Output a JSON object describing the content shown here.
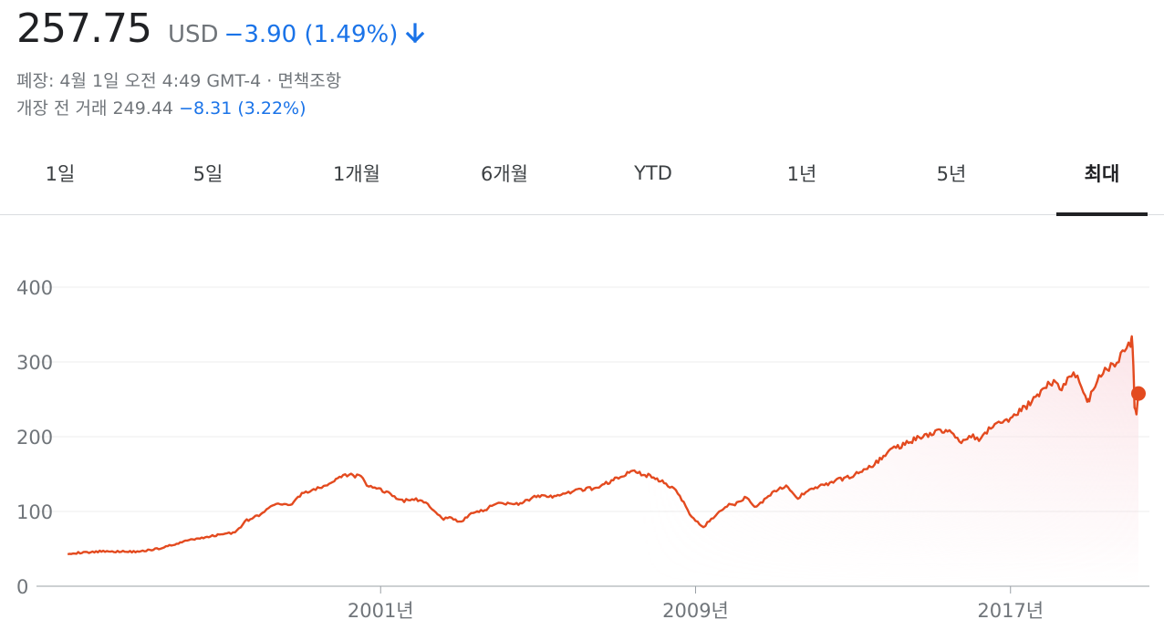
{
  "quote": {
    "price": "257.75",
    "currency": "USD",
    "change": "−3.90 (1.49%)",
    "direction_icon": "arrow-down-icon",
    "status_prefix": "폐장: ",
    "status_time": "4월 1일 오전 4:49 GMT-4",
    "status_separator": "·",
    "disclaimer": "면책조항",
    "premarket_label": "개장 전 거래",
    "premarket_price": "249.44",
    "premarket_change": "−8.31 (3.22%)"
  },
  "colors": {
    "line": "#e34a1f",
    "fill": "#fbe3e7",
    "negative": "#1a73e8",
    "grid": "#ececec"
  },
  "tabs": [
    {
      "label": "1일"
    },
    {
      "label": "5일"
    },
    {
      "label": "1개월"
    },
    {
      "label": "6개월"
    },
    {
      "label": "YTD"
    },
    {
      "label": "1년"
    },
    {
      "label": "5년"
    },
    {
      "label": "최대"
    }
  ],
  "active_tab": "최대",
  "chart_data": {
    "type": "line",
    "title": "",
    "xlabel": "",
    "ylabel": "",
    "ylim": [
      0,
      400
    ],
    "xlim": [
      1993.0,
      2020.25
    ],
    "grid": "horizontal",
    "y_ticks": [
      {
        "value": 0,
        "label": "0"
      },
      {
        "value": 100,
        "label": "100"
      },
      {
        "value": 200,
        "label": "200"
      },
      {
        "value": 300,
        "label": "300"
      },
      {
        "value": 400,
        "label": "400"
      }
    ],
    "x_ticks": [
      {
        "value": 2001.0,
        "label": "2001년"
      },
      {
        "value": 2009.0,
        "label": "2009년"
      },
      {
        "value": 2017.0,
        "label": "2017년"
      }
    ],
    "series": [
      {
        "x": [
          1993.05,
          1993.5,
          1994.0,
          1994.5,
          1995.0,
          1995.5,
          1996.0,
          1996.5,
          1997.0,
          1997.3,
          1997.6,
          1998.0,
          1998.3,
          1998.6,
          1998.8,
          1999.0,
          1999.3,
          1999.6,
          2000.0,
          2000.2,
          2000.5,
          2000.7,
          2001.0,
          2001.3,
          2001.6,
          2001.8,
          2002.0,
          2002.3,
          2002.6,
          2002.8,
          2003.0,
          2003.3,
          2003.6,
          2004.0,
          2004.5,
          2005.0,
          2005.5,
          2006.0,
          2006.5,
          2007.0,
          2007.4,
          2007.8,
          2008.2,
          2008.5,
          2008.7,
          2008.9,
          2009.0,
          2009.2,
          2009.5,
          2009.8,
          2010.0,
          2010.3,
          2010.5,
          2010.8,
          2011.0,
          2011.3,
          2011.6,
          2011.8,
          2012.0,
          2012.5,
          2013.0,
          2013.5,
          2014.0,
          2014.5,
          2015.0,
          2015.4,
          2015.7,
          2016.0,
          2016.2,
          2016.5,
          2016.8,
          2017.0,
          2017.5,
          2018.0,
          2018.3,
          2018.6,
          2018.8,
          2018.95,
          2019.0,
          2019.3,
          2019.6,
          2019.9,
          2020.05,
          2020.08,
          2020.12,
          2020.15,
          2020.2,
          2020.25
        ],
        "y": [
          44,
          45,
          47,
          46,
          47,
          52,
          60,
          65,
          70,
          72,
          88,
          97,
          110,
          108,
          112,
          125,
          128,
          135,
          145,
          150,
          146,
          133,
          130,
          121,
          114,
          117,
          115,
          105,
          90,
          92,
          85,
          97,
          101,
          112,
          110,
          121,
          120,
          128,
          132,
          144,
          154,
          148,
          138,
          130,
          112,
          92,
          88,
          79,
          95,
          108,
          109,
          120,
          105,
          118,
          128,
          133,
          117,
          127,
          131,
          140,
          148,
          162,
          183,
          195,
          205,
          210,
          193,
          201,
          195,
          212,
          220,
          225,
          245,
          275,
          265,
          285,
          270,
          245,
          250,
          285,
          295,
          315,
          325,
          337,
          300,
          240,
          230,
          258
        ]
      }
    ],
    "last_point": {
      "x": 2020.25,
      "y": 257.75
    }
  }
}
